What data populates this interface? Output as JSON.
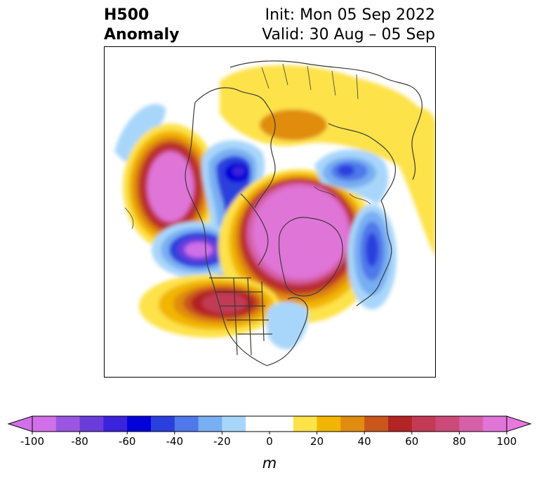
{
  "title": {
    "left_line1": "H500",
    "left_line2": "Anomaly",
    "right_line1": "Init: Mon 05 Sep 2022",
    "right_line2": "Valid: 30 Aug – 05 Sep"
  },
  "colorbar": {
    "unit": "m",
    "levels": [
      -100,
      -90,
      -80,
      -70,
      -60,
      -50,
      -40,
      -30,
      -20,
      -10,
      10,
      20,
      30,
      40,
      50,
      60,
      70,
      80,
      90,
      100
    ],
    "ticks": [
      {
        "value": -100,
        "label": "-100"
      },
      {
        "value": -80,
        "label": "-80"
      },
      {
        "value": -60,
        "label": "-60"
      },
      {
        "value": -40,
        "label": "-40"
      },
      {
        "value": -20,
        "label": "-20"
      },
      {
        "value": 0,
        "label": "0"
      },
      {
        "value": 20,
        "label": "20"
      },
      {
        "value": 40,
        "label": "40"
      },
      {
        "value": 60,
        "label": "60"
      },
      {
        "value": 80,
        "label": "80"
      },
      {
        "value": 100,
        "label": "100"
      }
    ],
    "colors_negative": [
      "#d070e8",
      "#9a56e0",
      "#6a3ddb",
      "#3b22dc",
      "#0000d8",
      "#2a3fdd",
      "#4f78ea",
      "#78aef2",
      "#a8d6fb"
    ],
    "colors_positive": [
      "#fde24a",
      "#f2b600",
      "#e08c10",
      "#c9561a",
      "#b32424",
      "#c23a55",
      "#cc4a78",
      "#d660a8",
      "#e075d8"
    ],
    "extend_low_color": "#d070e8",
    "extend_high_color": "#e878e0"
  }
}
